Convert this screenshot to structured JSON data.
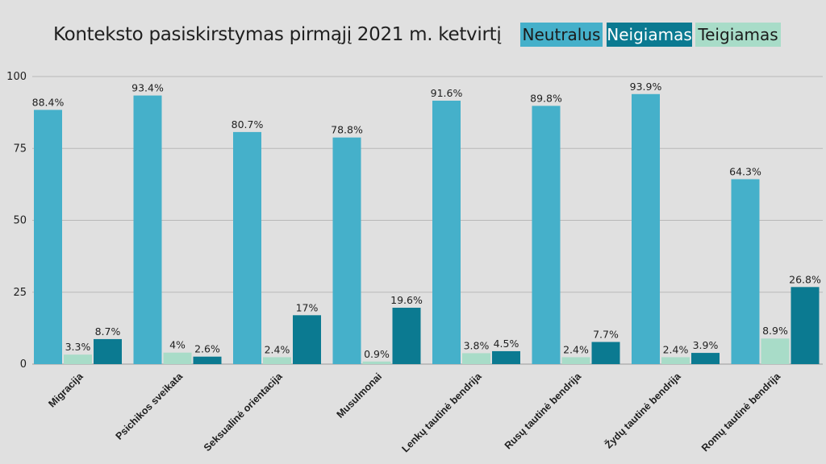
{
  "chart_data": {
    "type": "bar",
    "title": "Konteksto pasiskirstymas pirmąjį 2021 m. ketvirtį",
    "xlabel": "",
    "ylabel": "",
    "ylim": [
      0,
      100
    ],
    "yticks": [
      0,
      25,
      50,
      75,
      100
    ],
    "grid": true,
    "legend_position": "top-right",
    "categories": [
      "Migracija",
      "Psichikos sveikata",
      "Seksualinė orientacija",
      "Musulmonai",
      "Lenkų tautinė bendrija",
      "Rusų tautinė bendrija",
      "Žydų tautinė bendrija",
      "Romų tautinė bendrija"
    ],
    "series": [
      {
        "name": "Neutralus",
        "color": "#45b0ca",
        "values": [
          88.4,
          93.4,
          80.7,
          78.8,
          91.6,
          89.8,
          93.9,
          64.3
        ],
        "labels": [
          "88.4%",
          "93.4%",
          "80.7%",
          "78.8%",
          "91.6%",
          "89.8%",
          "93.9%",
          "64.3%"
        ]
      },
      {
        "name": "Teigiamas",
        "color": "#a8dcc8",
        "values": [
          3.3,
          4,
          2.4,
          0.9,
          3.8,
          2.4,
          2.4,
          8.9
        ],
        "labels": [
          "3.3%",
          "4%",
          "2.4%",
          "0.9%",
          "3.8%",
          "2.4%",
          "2.4%",
          "8.9%"
        ]
      },
      {
        "name": "Neigiamas",
        "color": "#0b7a91",
        "values": [
          8.7,
          2.6,
          17,
          19.6,
          4.5,
          7.7,
          3.9,
          26.8
        ],
        "labels": [
          "8.7%",
          "2.6%",
          "17%",
          "19.6%",
          "4.5%",
          "7.7%",
          "3.9%",
          "26.8%"
        ]
      }
    ],
    "legend": [
      {
        "name": "Neutralus",
        "color": "#45b0ca",
        "text_color": "#1b1b1b"
      },
      {
        "name": "Neigiamas",
        "color": "#0b7a91",
        "text_color": "#ffffff"
      },
      {
        "name": "Teigiamas",
        "color": "#a8dcc8",
        "text_color": "#1b1b1b"
      }
    ]
  }
}
